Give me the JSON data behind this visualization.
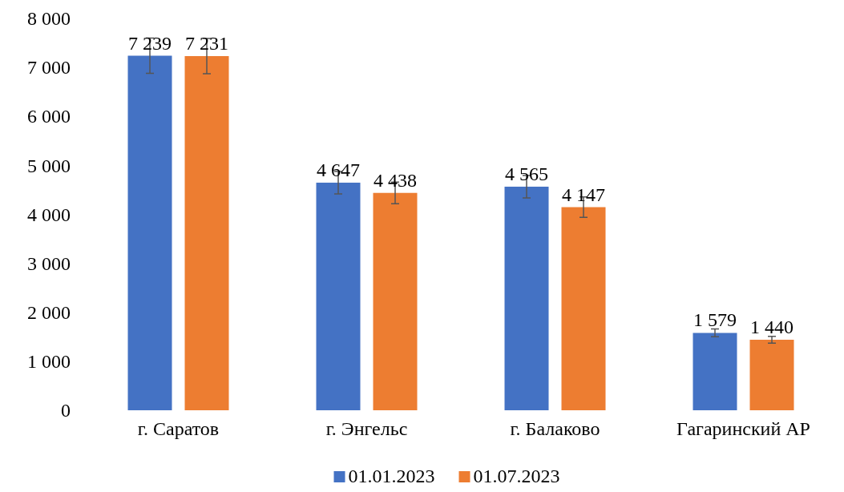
{
  "chart_data": {
    "type": "bar",
    "categories": [
      "г. Саратов",
      "г. Энгельс",
      "г. Балаково",
      "Гагаринский АР"
    ],
    "series": [
      {
        "name": "01.01.2023",
        "color": "#4472c4",
        "values": [
          7239,
          4647,
          4565,
          1579
        ],
        "value_labels": [
          "7 239",
          "4 647",
          "4 565",
          "1 579"
        ],
        "errors": [
          360,
          230,
          230,
          80
        ]
      },
      {
        "name": "01.07.2023",
        "color": "#ed7d31",
        "values": [
          7231,
          4438,
          4147,
          1440
        ],
        "value_labels": [
          "7 231",
          "4 438",
          "4 147",
          "1 440"
        ],
        "errors": [
          360,
          220,
          210,
          70
        ]
      }
    ],
    "ylim": [
      0,
      8000
    ],
    "yticks": [
      {
        "value": 0,
        "label": "0"
      },
      {
        "value": 1000,
        "label": "1 000"
      },
      {
        "value": 2000,
        "label": "2 000"
      },
      {
        "value": 3000,
        "label": "3 000"
      },
      {
        "value": 4000,
        "label": "4 000"
      },
      {
        "value": 5000,
        "label": "5 000"
      },
      {
        "value": 6000,
        "label": "6 000"
      },
      {
        "value": 7000,
        "label": "7 000"
      },
      {
        "value": 8000,
        "label": "8 000"
      }
    ],
    "grid": false,
    "legend": "bottom"
  }
}
